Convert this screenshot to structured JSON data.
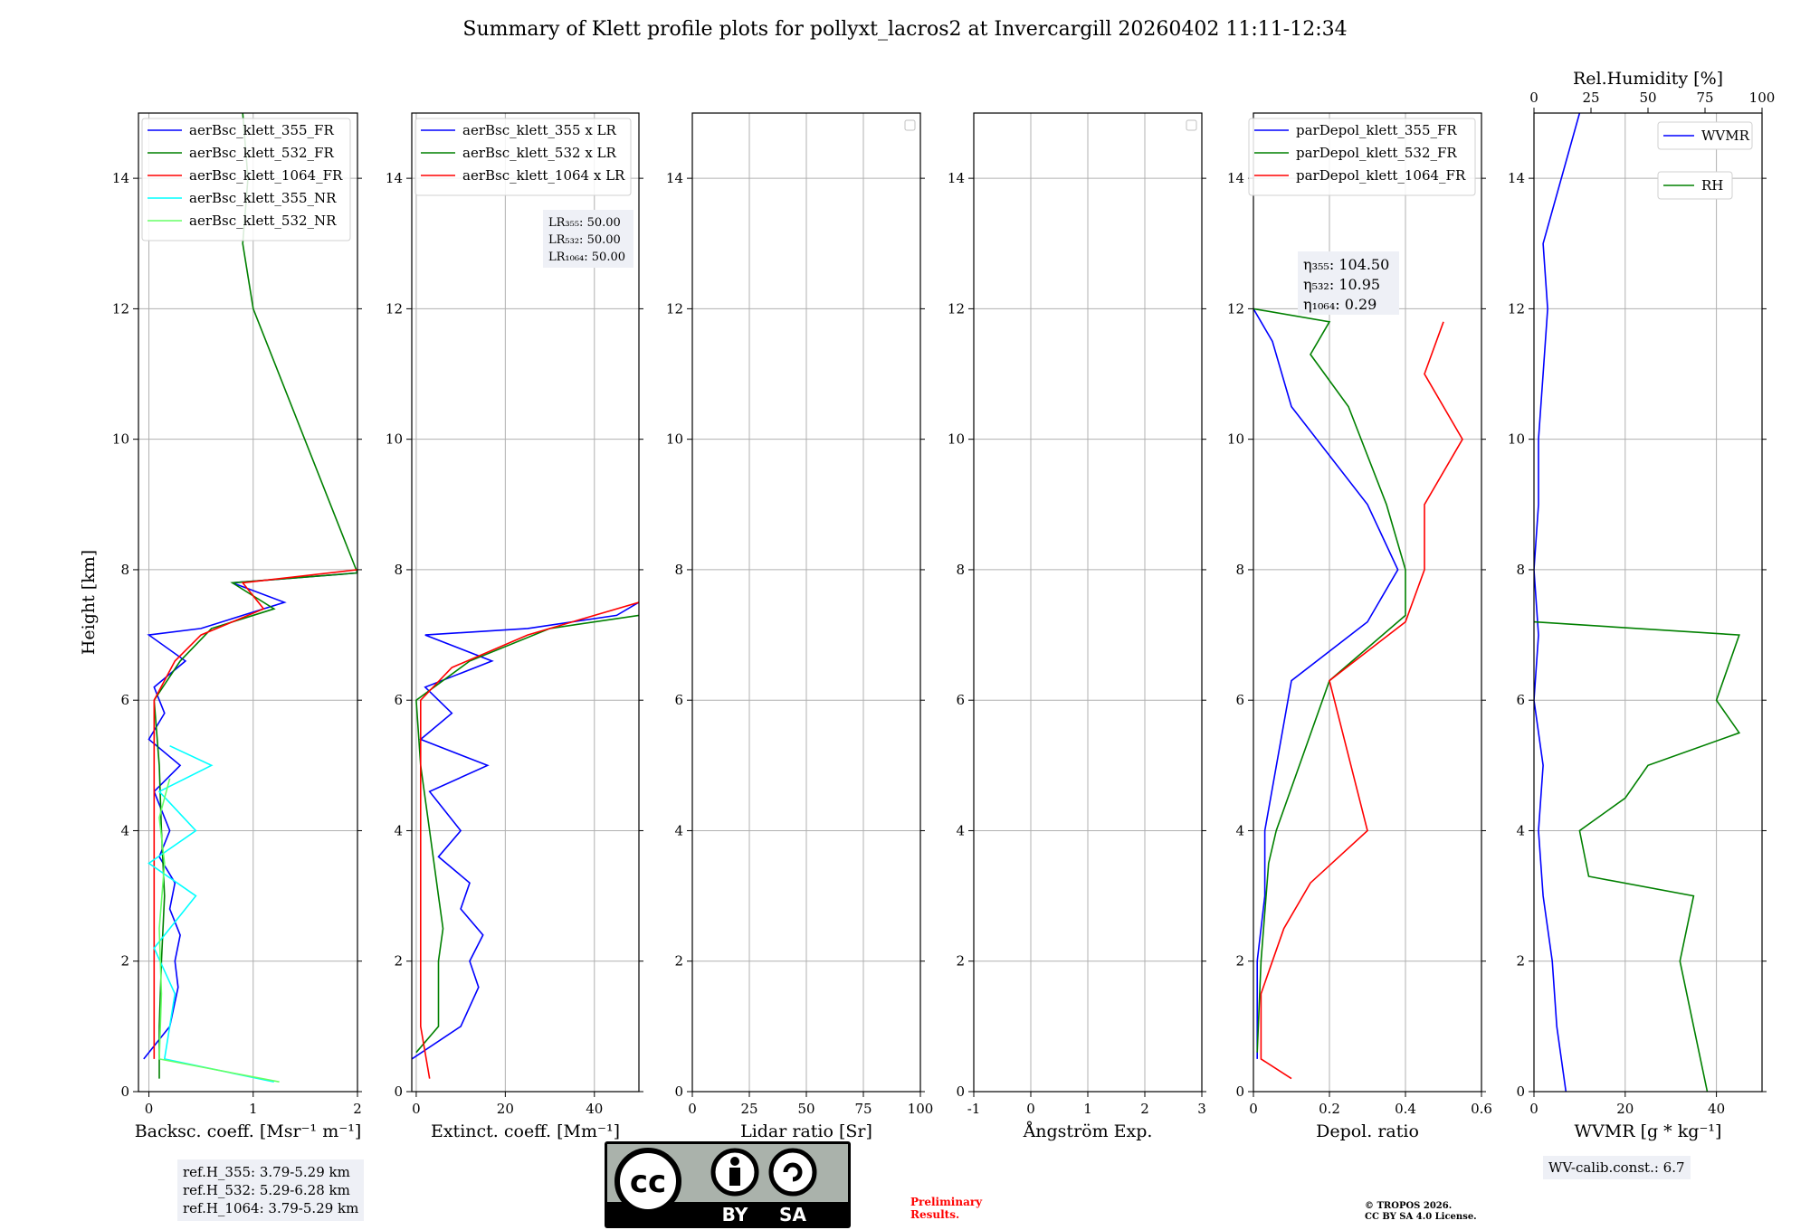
{
  "title": "Summary of Klett profile plots for pollyxt_lacros2 at Invercargill 20260402 11:11-12:34",
  "y_label": "Height [km]",
  "ref_heights": [
    "ref.H_355: 3.79-5.29 km",
    "ref.H_532: 5.29-6.28 km",
    "ref.H_1064: 3.79-5.29 km"
  ],
  "wv_calib": "WV-calib.const.: 6.7",
  "license_logo": {
    "main": "cc",
    "by": "BY",
    "sa": "SA"
  },
  "preliminary": [
    "Preliminary",
    "Results."
  ],
  "copyright": [
    "© TROPOS 2026.",
    "CC BY SA 4.0 License."
  ],
  "colors": {
    "c355": "#0000ff",
    "c532": "#008000",
    "c1064": "#ff0000",
    "c355nr": "#00ffff",
    "c532nr": "#66ff66"
  },
  "chart_data": [
    {
      "type": "line",
      "id": "bsc",
      "xlabel": "Backsc. coeff. [Msr⁻¹ m⁻¹]",
      "xlim": [
        -0.1,
        2
      ],
      "ylim": [
        0,
        15
      ],
      "xticks": [
        0,
        1,
        2
      ],
      "yticks": [
        0,
        2,
        4,
        6,
        8,
        10,
        12,
        14
      ],
      "legend": [
        "aerBsc_klett_355_FR",
        "aerBsc_klett_532_FR",
        "aerBsc_klett_1064_FR",
        "aerBsc_klett_355_NR",
        "aerBsc_klett_532_NR"
      ],
      "series": [
        {
          "name": "aerBsc_klett_355_FR",
          "color": "#0000ff",
          "points": [
            [
              -0.05,
              0.5
            ],
            [
              0.2,
              1
            ],
            [
              0.28,
              1.6
            ],
            [
              0.25,
              2
            ],
            [
              0.3,
              2.4
            ],
            [
              0.2,
              2.8
            ],
            [
              0.25,
              3.2
            ],
            [
              0.1,
              3.6
            ],
            [
              0.2,
              4
            ],
            [
              0.05,
              4.6
            ],
            [
              0.3,
              5
            ],
            [
              0.0,
              5.4
            ],
            [
              0.15,
              5.8
            ],
            [
              0.05,
              6.2
            ],
            [
              0.35,
              6.6
            ],
            [
              0.0,
              7.0
            ],
            [
              0.5,
              7.1
            ],
            [
              0.9,
              7.3
            ],
            [
              1.3,
              7.5
            ],
            [
              0.8,
              7.8
            ],
            [
              2.0,
              7.95
            ]
          ]
        },
        {
          "name": "aerBsc_klett_532_FR",
          "color": "#008000",
          "points": [
            [
              0.1,
              0.2
            ],
            [
              0.1,
              1
            ],
            [
              0.12,
              2
            ],
            [
              0.15,
              3
            ],
            [
              0.12,
              4
            ],
            [
              0.1,
              5
            ],
            [
              0.05,
              6
            ],
            [
              0.3,
              6.6
            ],
            [
              0.6,
              7.1
            ],
            [
              1.2,
              7.4
            ],
            [
              0.8,
              7.8
            ],
            [
              2.0,
              7.95
            ],
            [
              1.0,
              12.0
            ],
            [
              0.9,
              13.0
            ],
            [
              0.95,
              14.0
            ],
            [
              0.9,
              15.0
            ]
          ]
        },
        {
          "name": "aerBsc_klett_1064_FR",
          "color": "#ff0000",
          "points": [
            [
              0.05,
              0.5
            ],
            [
              0.05,
              2
            ],
            [
              0.05,
              4
            ],
            [
              0.05,
              6
            ],
            [
              0.25,
              6.6
            ],
            [
              0.5,
              7.0
            ],
            [
              1.1,
              7.4
            ],
            [
              0.9,
              7.8
            ],
            [
              2.0,
              8.0
            ]
          ]
        },
        {
          "name": "aerBsc_klett_355_NR",
          "color": "#00ffff",
          "points": [
            [
              1.2,
              0.15
            ],
            [
              0.15,
              0.5
            ],
            [
              0.25,
              1.5
            ],
            [
              0.05,
              2.2
            ],
            [
              0.45,
              3
            ],
            [
              0.0,
              3.5
            ],
            [
              0.45,
              4
            ],
            [
              0.1,
              4.6
            ],
            [
              0.6,
              5
            ],
            [
              0.2,
              5.3
            ]
          ]
        },
        {
          "name": "aerBsc_klett_532_NR",
          "color": "#66ff66",
          "points": [
            [
              1.25,
              0.15
            ],
            [
              0.1,
              0.5
            ],
            [
              0.12,
              1.5
            ],
            [
              0.1,
              2.5
            ],
            [
              0.15,
              3.5
            ],
            [
              0.1,
              4.2
            ],
            [
              0.2,
              4.8
            ]
          ]
        }
      ]
    },
    {
      "type": "line",
      "id": "ext",
      "xlabel": "Extinct. coeff. [Mm⁻¹]",
      "xlim": [
        -1,
        50
      ],
      "ylim": [
        0,
        15
      ],
      "xticks": [
        0,
        20,
        40
      ],
      "yticks": [
        0,
        2,
        4,
        6,
        8,
        10,
        12,
        14
      ],
      "legend": [
        "aerBsc_klett_355 x LR",
        "aerBsc_klett_532 x LR",
        "aerBsc_klett_1064 x LR"
      ],
      "annotation": [
        "LR₃₅₅: 50.00",
        "LR₅₃₂: 50.00",
        "LR₁₀₆₄: 50.00"
      ],
      "series": [
        {
          "name": "aerBsc_klett_355 x LR",
          "color": "#0000ff",
          "points": [
            [
              -1,
              0.5
            ],
            [
              10,
              1
            ],
            [
              14,
              1.6
            ],
            [
              12,
              2
            ],
            [
              15,
              2.4
            ],
            [
              10,
              2.8
            ],
            [
              12,
              3.2
            ],
            [
              5,
              3.6
            ],
            [
              10,
              4
            ],
            [
              3,
              4.6
            ],
            [
              16,
              5
            ],
            [
              1,
              5.4
            ],
            [
              8,
              5.8
            ],
            [
              2,
              6.2
            ],
            [
              17,
              6.6
            ],
            [
              2,
              7.0
            ],
            [
              25,
              7.1
            ],
            [
              45,
              7.3
            ],
            [
              50,
              7.5
            ]
          ]
        },
        {
          "name": "aerBsc_klett_532 x LR",
          "color": "#008000",
          "points": [
            [
              0,
              0.6
            ],
            [
              5,
              1
            ],
            [
              5,
              2
            ],
            [
              6,
              2.5
            ],
            [
              5,
              3
            ],
            [
              3,
              4
            ],
            [
              1,
              5
            ],
            [
              0,
              6
            ],
            [
              12,
              6.6
            ],
            [
              30,
              7.1
            ],
            [
              50,
              7.3
            ]
          ]
        },
        {
          "name": "aerBsc_klett_1064 x LR",
          "color": "#ff0000",
          "points": [
            [
              3,
              0.2
            ],
            [
              1,
              1
            ],
            [
              1,
              3
            ],
            [
              1,
              5
            ],
            [
              1,
              6
            ],
            [
              8,
              6.5
            ],
            [
              25,
              7.0
            ],
            [
              50,
              7.5
            ]
          ]
        }
      ]
    },
    {
      "type": "line",
      "id": "lr",
      "xlabel": "Lidar ratio [Sr]",
      "xlim": [
        0,
        100
      ],
      "ylim": [
        0,
        15
      ],
      "xticks": [
        0,
        25,
        50,
        75,
        100
      ],
      "yticks": [
        0,
        2,
        4,
        6,
        8,
        10,
        12,
        14
      ],
      "series": []
    },
    {
      "type": "line",
      "id": "ae",
      "xlabel": "Ångström Exp.",
      "xlim": [
        -1,
        3
      ],
      "ylim": [
        0,
        15
      ],
      "xticks": [
        -1,
        0,
        1,
        2,
        3
      ],
      "yticks": [
        0,
        2,
        4,
        6,
        8,
        10,
        12,
        14
      ],
      "series": []
    },
    {
      "type": "line",
      "id": "depol",
      "xlabel": "Depol. ratio",
      "xlim": [
        0,
        0.6
      ],
      "ylim": [
        0,
        15
      ],
      "xticks": [
        0.0,
        0.2,
        0.4,
        0.6
      ],
      "yticks": [
        0,
        2,
        4,
        6,
        8,
        10,
        12,
        14
      ],
      "legend": [
        "parDepol_klett_355_FR",
        "parDepol_klett_532_FR",
        "parDepol_klett_1064_FR"
      ],
      "annotation": [
        "η₃₅₅: 104.50",
        "η₅₃₂: 10.95",
        "η₁₀₆₄: 0.29"
      ],
      "series": [
        {
          "name": "parDepol_klett_355_FR",
          "color": "#0000ff",
          "points": [
            [
              0.01,
              0.5
            ],
            [
              0.01,
              2
            ],
            [
              0.03,
              3
            ],
            [
              0.03,
              4
            ],
            [
              0.1,
              6.3
            ],
            [
              0.3,
              7.2
            ],
            [
              0.38,
              8
            ],
            [
              0.3,
              9
            ],
            [
              0.1,
              10.5
            ],
            [
              0.05,
              11.5
            ],
            [
              0.0,
              12.0
            ]
          ]
        },
        {
          "name": "parDepol_klett_532_FR",
          "color": "#008000",
          "points": [
            [
              0.01,
              0.6
            ],
            [
              0.02,
              2
            ],
            [
              0.04,
              3.5
            ],
            [
              0.06,
              4
            ],
            [
              0.2,
              6.3
            ],
            [
              0.4,
              7.3
            ],
            [
              0.4,
              8
            ],
            [
              0.35,
              9
            ],
            [
              0.25,
              10.5
            ],
            [
              0.15,
              11.3
            ],
            [
              0.2,
              11.8
            ],
            [
              0.0,
              12.0
            ]
          ]
        },
        {
          "name": "parDepol_klett_1064_FR",
          "color": "#ff0000",
          "points": [
            [
              0.1,
              0.2
            ],
            [
              0.02,
              0.5
            ],
            [
              0.02,
              1.5
            ],
            [
              0.05,
              2
            ],
            [
              0.08,
              2.5
            ],
            [
              0.15,
              3.2
            ],
            [
              0.3,
              4.0
            ],
            [
              0.2,
              6.3
            ],
            [
              0.4,
              7.2
            ],
            [
              0.45,
              8
            ],
            [
              0.45,
              9.0
            ],
            [
              0.55,
              10.0
            ],
            [
              0.45,
              11
            ],
            [
              0.5,
              11.8
            ]
          ]
        }
      ]
    },
    {
      "type": "line",
      "id": "wv",
      "xlabel": "WVMR [g * kg⁻¹]",
      "x2label": "Rel.Humidity [%]",
      "xlim": [
        0,
        50
      ],
      "ylim": [
        0,
        15
      ],
      "x2lim": [
        0,
        100
      ],
      "xticks": [
        0,
        20,
        40
      ],
      "x2ticks": [
        0,
        25,
        50,
        75,
        100
      ],
      "yticks": [
        0,
        2,
        4,
        6,
        8,
        10,
        12,
        14
      ],
      "legend": [
        "WVMR",
        "RH"
      ],
      "series": [
        {
          "name": "WVMR",
          "color": "#0000ff",
          "points": [
            [
              7,
              0
            ],
            [
              5,
              1
            ],
            [
              4,
              2
            ],
            [
              2,
              3
            ],
            [
              1,
              4
            ],
            [
              2,
              5
            ],
            [
              0,
              6
            ],
            [
              1,
              7
            ],
            [
              0,
              8
            ],
            [
              1,
              9
            ],
            [
              1,
              10
            ],
            [
              2,
              11
            ],
            [
              3,
              12
            ],
            [
              2,
              13
            ],
            [
              10,
              15
            ]
          ]
        },
        {
          "name": "RH",
          "color": "#008000",
          "points": [
            [
              38,
              0
            ],
            [
              35,
              1
            ],
            [
              32,
              2
            ],
            [
              35,
              3
            ],
            [
              12,
              3.3
            ],
            [
              10,
              4
            ],
            [
              20,
              4.5
            ],
            [
              25,
              5
            ],
            [
              45,
              5.5
            ],
            [
              40,
              6
            ],
            [
              45,
              7
            ],
            [
              0,
              7.2
            ]
          ]
        }
      ]
    }
  ]
}
